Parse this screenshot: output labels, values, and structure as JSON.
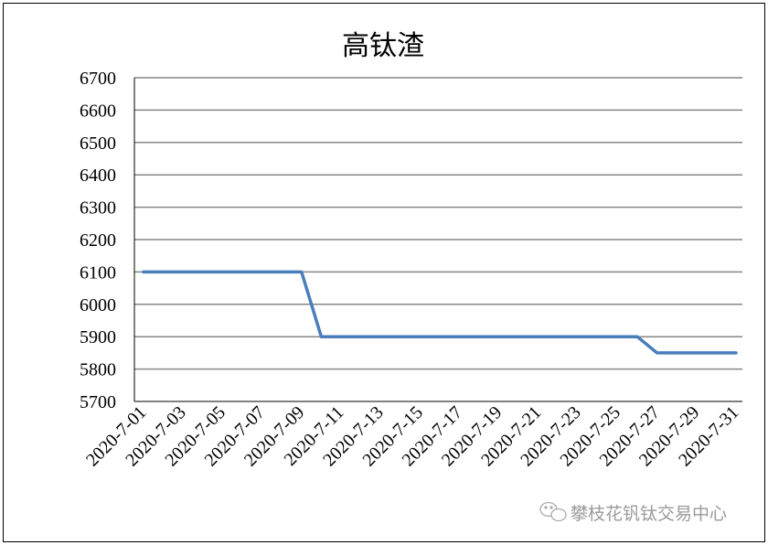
{
  "chart_data": {
    "type": "line",
    "title": "高钛渣",
    "xlabel": "",
    "ylabel": "",
    "ylim": [
      5700,
      6700
    ],
    "yticks": [
      5700,
      5800,
      5900,
      6000,
      6100,
      6200,
      6300,
      6400,
      6500,
      6600,
      6700
    ],
    "grid": true,
    "categories": [
      "2020-7-01",
      "2020-7-02",
      "2020-7-03",
      "2020-7-04",
      "2020-7-05",
      "2020-7-06",
      "2020-7-07",
      "2020-7-08",
      "2020-7-09",
      "2020-7-10",
      "2020-7-11",
      "2020-7-12",
      "2020-7-13",
      "2020-7-14",
      "2020-7-15",
      "2020-7-16",
      "2020-7-17",
      "2020-7-18",
      "2020-7-19",
      "2020-7-20",
      "2020-7-21",
      "2020-7-22",
      "2020-7-23",
      "2020-7-24",
      "2020-7-25",
      "2020-7-26",
      "2020-7-27",
      "2020-7-28",
      "2020-7-29",
      "2020-7-30",
      "2020-7-31"
    ],
    "xtick_labels": [
      "2020-7-01",
      "2020-7-03",
      "2020-7-05",
      "2020-7-07",
      "2020-7-09",
      "2020-7-11",
      "2020-7-13",
      "2020-7-15",
      "2020-7-17",
      "2020-7-19",
      "2020-7-21",
      "2020-7-23",
      "2020-7-25",
      "2020-7-27",
      "2020-7-29",
      "2020-7-31"
    ],
    "series": [
      {
        "values": [
          6100,
          6100,
          6100,
          6100,
          6100,
          6100,
          6100,
          6100,
          6100,
          5900,
          5900,
          5900,
          5900,
          5900,
          5900,
          5900,
          5900,
          5900,
          5900,
          5900,
          5900,
          5900,
          5900,
          5900,
          5900,
          5900,
          5850,
          5850,
          5850,
          5850,
          5850
        ],
        "color": "#4a7ebb"
      }
    ],
    "gridline_color": "#868686"
  },
  "watermark": {
    "text": "攀枝花钒钛交易中心",
    "icon": "wechat-icon"
  }
}
